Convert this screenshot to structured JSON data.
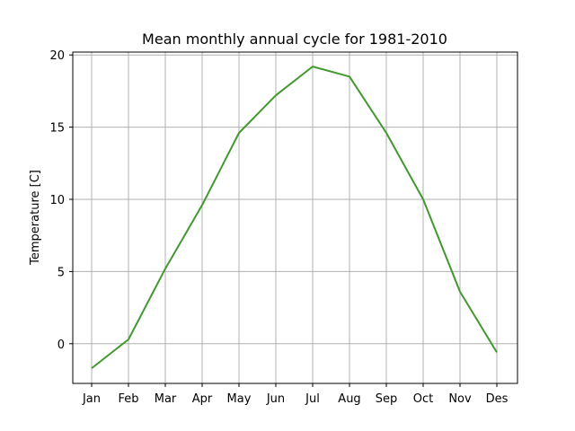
{
  "chart_data": {
    "type": "line",
    "title": "Mean monthly annual cycle for 1981-2010",
    "xlabel": "",
    "ylabel": "Temperature [C]",
    "categories": [
      "Jan",
      "Feb",
      "Mar",
      "Apr",
      "May",
      "Jun",
      "Jul",
      "Aug",
      "Sep",
      "Oct",
      "Nov",
      "Des"
    ],
    "series": [
      {
        "values": [
          -1.7,
          0.3,
          5.2,
          9.6,
          14.6,
          17.2,
          19.2,
          18.5,
          14.6,
          10.0,
          3.6,
          -0.6
        ],
        "color": "#43982f"
      }
    ],
    "ylim": [
      -2.75,
      20.2
    ],
    "yticks": [
      0,
      5,
      10,
      15,
      20
    ],
    "grid": true,
    "legend": "none"
  }
}
